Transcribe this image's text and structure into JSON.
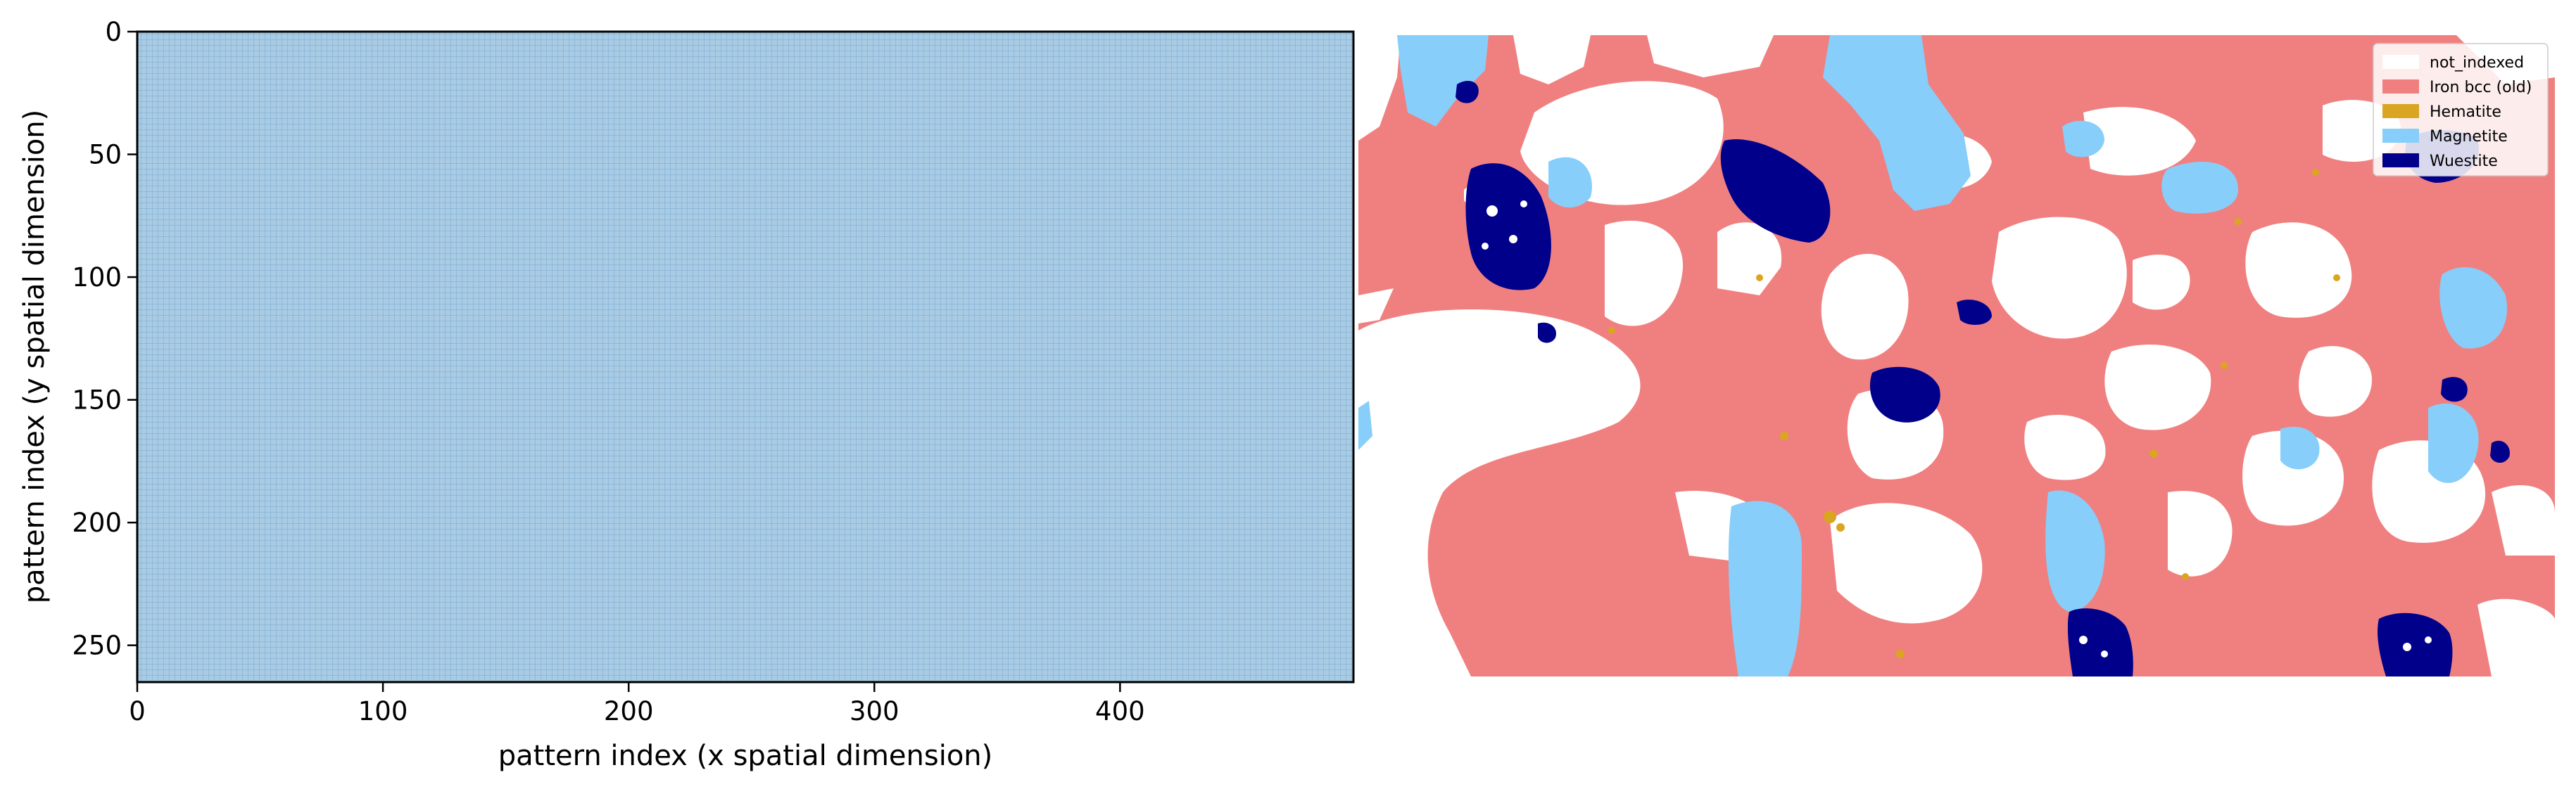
{
  "chart_data": [
    {
      "type": "heatmap",
      "title": "",
      "xlabel": "pattern index (x spatial dimension)",
      "ylabel": "pattern index (y spatial dimension)",
      "xlim": [
        0,
        495
      ],
      "ylim": [
        265,
        0
      ],
      "x_ticks": [
        0,
        100,
        200,
        300,
        400
      ],
      "y_ticks": [
        0,
        50,
        100,
        150,
        200,
        250
      ],
      "grid_step": 1,
      "fill_color": "#a9cbe3",
      "grid_color": "#7fb0d6",
      "description_of_values": "uniform pattern grid"
    },
    {
      "type": "heatmap",
      "title": "",
      "legend": [
        {
          "name": "not_indexed",
          "color": "#ffffff"
        },
        {
          "name": "Iron bcc (old)",
          "color": "#f08080"
        },
        {
          "name": "Hematite",
          "color": "#daa520"
        },
        {
          "name": "Magnetite",
          "color": "#87cefa"
        },
        {
          "name": "Wuestite",
          "color": "#00008b"
        }
      ],
      "legend_loc": "upper right"
    }
  ]
}
